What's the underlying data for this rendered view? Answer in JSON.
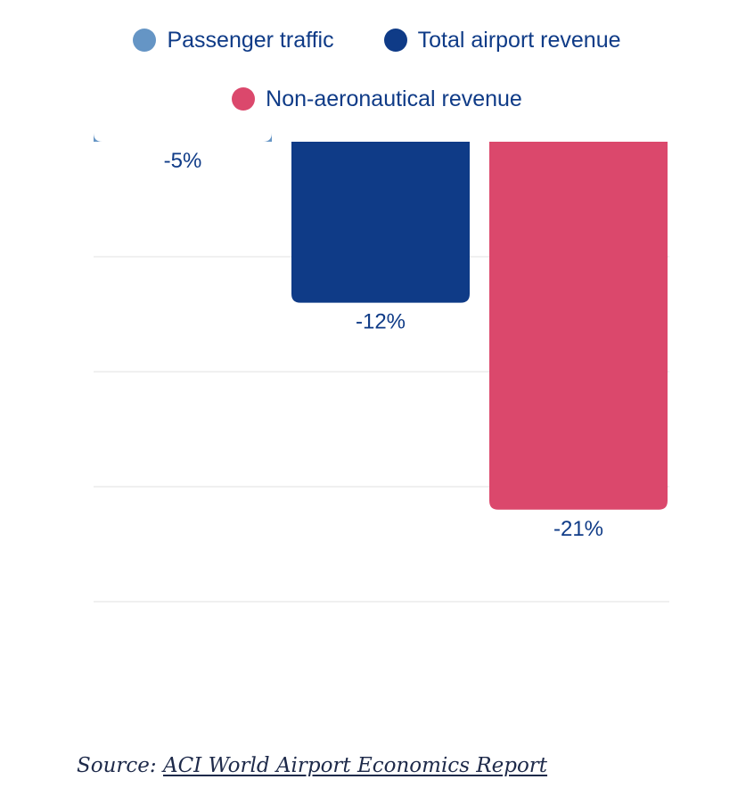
{
  "chart_data": {
    "type": "bar",
    "categories": [
      "Passenger traffic",
      "Total airport revenue",
      "Non-aeronautical revenue"
    ],
    "values": [
      -5,
      -12,
      -21
    ],
    "data_labels": [
      "-5%",
      "-12%",
      "-21%"
    ],
    "unit": "%",
    "ylim": [
      -25,
      0
    ],
    "grid": true,
    "legend_position": "top-center",
    "colors": [
      "#6595c5",
      "#0f3b87",
      "#db486c"
    ]
  },
  "legend": [
    {
      "label": "Passenger traffic",
      "color": "#6595c5"
    },
    {
      "label": "Total airport revenue",
      "color": "#0f3b87"
    },
    {
      "label": "Non-aeronautical revenue",
      "color": "#db486c"
    }
  ],
  "source": {
    "prefix": "Source: ",
    "link_text": "ACI World Airport Economics Report"
  },
  "colors": {
    "label_text": "#0f3b87",
    "grid": "#e2e2e2"
  }
}
